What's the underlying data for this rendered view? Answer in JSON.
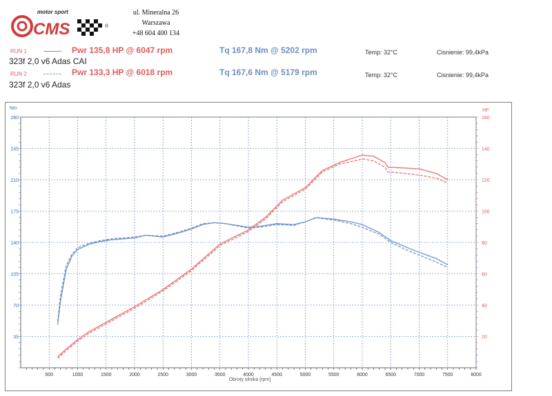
{
  "logo": {
    "tagline": "motor sport",
    "text": "CMS",
    "registered": "®"
  },
  "address": {
    "street": "ul. Mineralna 26",
    "city": "Warszawa",
    "phone": "+48 604 400 134"
  },
  "runs": [
    {
      "label": "RUN 1",
      "pwr": "Pwr 135,8 HP @ 6047 rpm",
      "tq": "Tq 167,8 Nm @ 5202 rpm",
      "temp": "Temp: 32°C",
      "pressure": "Cisnienie: 99,4kPa",
      "desc": "323f  2,0 v6 Adas CAI"
    },
    {
      "label": "RUN 2",
      "pwr": "Pwr 133,3 HP @ 6018 rpm",
      "tq": "Tq 167,6 Nm @ 5179 rpm",
      "temp": "Temp: 32°C",
      "pressure": "Cisnienie: 99,4kPa",
      "desc": "323f 2,0 v6 Adas"
    }
  ],
  "colors": {
    "power": "#e8706f",
    "torque": "#6f93c8",
    "grid": "#7a9acb"
  },
  "chart_data": {
    "type": "line",
    "xlabel": "Obroty silnika [rpm]",
    "ylabel_left": "Nm",
    "ylabel_right": "HP",
    "xlim": [
      0,
      8000
    ],
    "ylim_left": [
      0,
      280
    ],
    "ylim_right": [
      0,
      160
    ],
    "x_ticks": [
      500,
      1000,
      1500,
      2000,
      2500,
      3000,
      3500,
      4000,
      4500,
      5000,
      5500,
      6000,
      6500,
      7000,
      7500,
      8000
    ],
    "y_left_ticks": [
      35,
      70,
      105,
      140,
      175,
      210,
      245,
      280
    ],
    "y_right_ticks": [
      20,
      40,
      60,
      80,
      100,
      120,
      140,
      160
    ],
    "grid": true,
    "series": [
      {
        "axis": "left",
        "style": "solid",
        "color": "#6f93c8",
        "points": [
          [
            650,
            48
          ],
          [
            700,
            75
          ],
          [
            800,
            110
          ],
          [
            900,
            125
          ],
          [
            1000,
            132
          ],
          [
            1200,
            138
          ],
          [
            1400,
            141
          ],
          [
            1600,
            143
          ],
          [
            1800,
            144
          ],
          [
            2000,
            145
          ],
          [
            2200,
            148
          ],
          [
            2500,
            146
          ],
          [
            2800,
            151
          ],
          [
            3000,
            155
          ],
          [
            3200,
            160
          ],
          [
            3400,
            162
          ],
          [
            3600,
            161
          ],
          [
            4000,
            157
          ],
          [
            4200,
            158
          ],
          [
            4500,
            161
          ],
          [
            4800,
            160
          ],
          [
            5000,
            163
          ],
          [
            5200,
            167.8
          ],
          [
            5500,
            166
          ],
          [
            5800,
            163
          ],
          [
            6000,
            160
          ],
          [
            6300,
            151
          ],
          [
            6500,
            142
          ],
          [
            6800,
            134
          ],
          [
            7000,
            129
          ],
          [
            7300,
            122
          ],
          [
            7500,
            115
          ]
        ]
      },
      {
        "axis": "left",
        "style": "dashed",
        "color": "#6f93c8",
        "points": [
          [
            650,
            52
          ],
          [
            700,
            82
          ],
          [
            800,
            114
          ],
          [
            900,
            127
          ],
          [
            1000,
            134
          ],
          [
            1200,
            139
          ],
          [
            1400,
            142
          ],
          [
            1600,
            144
          ],
          [
            1800,
            145
          ],
          [
            2000,
            146
          ],
          [
            2200,
            148
          ],
          [
            2500,
            147
          ],
          [
            2800,
            152
          ],
          [
            3000,
            156
          ],
          [
            3200,
            161
          ],
          [
            3400,
            162
          ],
          [
            3600,
            161
          ],
          [
            4000,
            156
          ],
          [
            4200,
            157
          ],
          [
            4500,
            160
          ],
          [
            4800,
            159
          ],
          [
            5000,
            163
          ],
          [
            5179,
            167.6
          ],
          [
            5500,
            165
          ],
          [
            5800,
            161
          ],
          [
            6000,
            157
          ],
          [
            6300,
            149
          ],
          [
            6500,
            140
          ],
          [
            6800,
            131
          ],
          [
            7000,
            126
          ],
          [
            7300,
            118
          ],
          [
            7500,
            112
          ]
        ]
      },
      {
        "axis": "right",
        "style": "solid",
        "color": "#e8706f",
        "points": [
          [
            650,
            7
          ],
          [
            800,
            12
          ],
          [
            1000,
            18
          ],
          [
            1200,
            23
          ],
          [
            1500,
            29
          ],
          [
            2000,
            39
          ],
          [
            2500,
            50
          ],
          [
            3000,
            63
          ],
          [
            3500,
            79
          ],
          [
            4000,
            88
          ],
          [
            4300,
            96
          ],
          [
            4600,
            107
          ],
          [
            5000,
            115
          ],
          [
            5300,
            126
          ],
          [
            5600,
            131
          ],
          [
            6000,
            135.8
          ],
          [
            6200,
            135
          ],
          [
            6400,
            131
          ],
          [
            6450,
            128
          ],
          [
            6500,
            128
          ],
          [
            7000,
            127
          ],
          [
            7300,
            124
          ],
          [
            7500,
            120
          ]
        ]
      },
      {
        "axis": "right",
        "style": "dashed",
        "color": "#e8706f",
        "points": [
          [
            650,
            6
          ],
          [
            800,
            11
          ],
          [
            1000,
            17
          ],
          [
            1200,
            22
          ],
          [
            1500,
            28
          ],
          [
            2000,
            38
          ],
          [
            2500,
            49
          ],
          [
            3000,
            62
          ],
          [
            3500,
            78
          ],
          [
            4000,
            87
          ],
          [
            4300,
            95
          ],
          [
            4600,
            106
          ],
          [
            5000,
            114
          ],
          [
            5300,
            125
          ],
          [
            5600,
            130
          ],
          [
            6018,
            133.3
          ],
          [
            6200,
            132
          ],
          [
            6400,
            128
          ],
          [
            6450,
            125
          ],
          [
            6500,
            125
          ],
          [
            7000,
            123
          ],
          [
            7300,
            121
          ],
          [
            7500,
            118
          ]
        ]
      }
    ]
  }
}
